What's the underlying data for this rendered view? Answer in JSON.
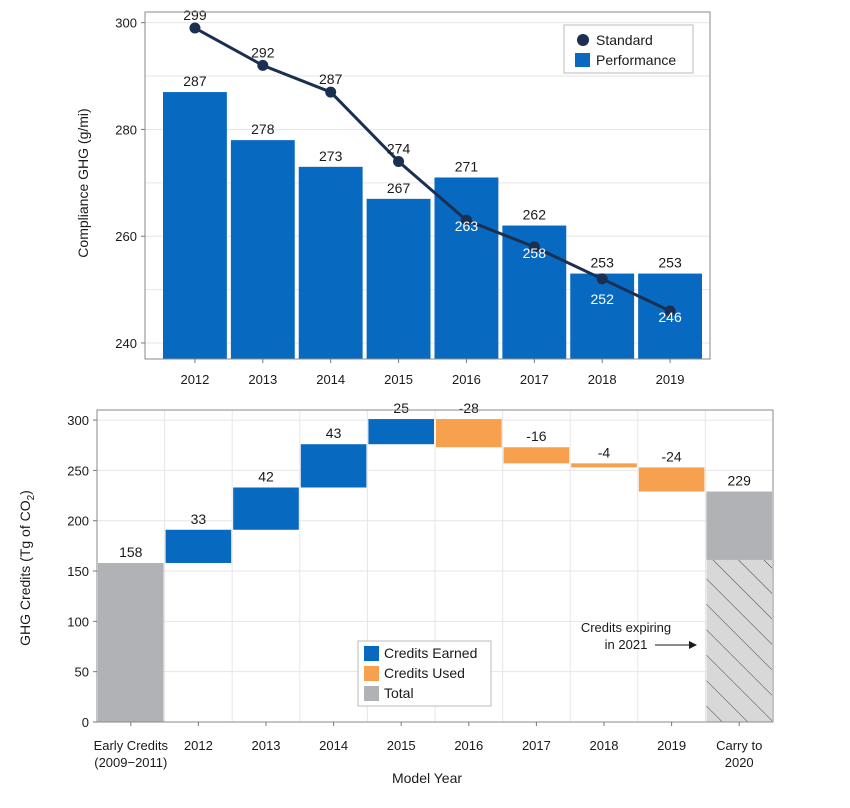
{
  "colors": {
    "performance": "#0769c0",
    "standard": "#1b2f52",
    "earned": "#0769c0",
    "used": "#f7a04e",
    "total": "#b1b2b6",
    "hatch_bg": "#d8d8d8",
    "grid": "#e6e6e6",
    "frame": "#8a8a8a"
  },
  "chart_data": [
    {
      "type": "bar",
      "title": "",
      "xlabel": "",
      "ylabel": "Compliance GHG (g/mi)",
      "categories": [
        "2012",
        "2013",
        "2014",
        "2015",
        "2016",
        "2017",
        "2018",
        "2019"
      ],
      "ylim": [
        237,
        302
      ],
      "yticks": [
        "240",
        "260",
        "280",
        "300"
      ],
      "grid": true,
      "legend_position": "top-right",
      "series": [
        {
          "name": "Standard",
          "kind": "line",
          "values": [
            299,
            292,
            287,
            274,
            263,
            258,
            252,
            246
          ],
          "labels": [
            "299",
            "292",
            "287",
            "274",
            "263",
            "258",
            "252",
            "246"
          ]
        },
        {
          "name": "Performance",
          "kind": "bar",
          "values": [
            287,
            278,
            273,
            267,
            271,
            262,
            253,
            253
          ],
          "labels": [
            "287",
            "278",
            "273",
            "267",
            "271",
            "262",
            "253",
            "253"
          ]
        }
      ]
    },
    {
      "type": "bar",
      "subtype": "waterfall",
      "title": "",
      "xlabel": "Model Year",
      "ylabel": "GHG Credits (Tg of CO",
      "ylabel_sub": "2",
      "ylabel_end": ")",
      "categories": [
        [
          "Early Credits",
          "(2009−2011)"
        ],
        [
          "2012"
        ],
        [
          "2013"
        ],
        [
          "2014"
        ],
        [
          "2015"
        ],
        [
          "2016"
        ],
        [
          "2017"
        ],
        [
          "2018"
        ],
        [
          "2019"
        ],
        [
          "Carry to",
          "2020"
        ]
      ],
      "ylim": [
        0,
        310
      ],
      "yticks": [
        "0",
        "50",
        "100",
        "150",
        "200",
        "250",
        "300"
      ],
      "grid": true,
      "legend_position": "bottom-center",
      "legend": [
        "Credits Earned",
        "Credits Used",
        "Total"
      ],
      "steps": [
        {
          "kind": "total",
          "value": 158,
          "label": "158"
        },
        {
          "kind": "earned",
          "value": 33,
          "label": "33"
        },
        {
          "kind": "earned",
          "value": 42,
          "label": "42"
        },
        {
          "kind": "earned",
          "value": 43,
          "label": "43"
        },
        {
          "kind": "earned",
          "value": 25,
          "label": "25"
        },
        {
          "kind": "used",
          "value": -28,
          "label": "-28"
        },
        {
          "kind": "used",
          "value": -16,
          "label": "-16"
        },
        {
          "kind": "used",
          "value": -4,
          "label": "-4"
        },
        {
          "kind": "used",
          "value": -24,
          "label": "-24"
        },
        {
          "kind": "total",
          "value": 229,
          "label": "229"
        }
      ],
      "expiring_value": 161,
      "annotation": [
        "Credits expiring",
        "in 2021"
      ]
    }
  ]
}
